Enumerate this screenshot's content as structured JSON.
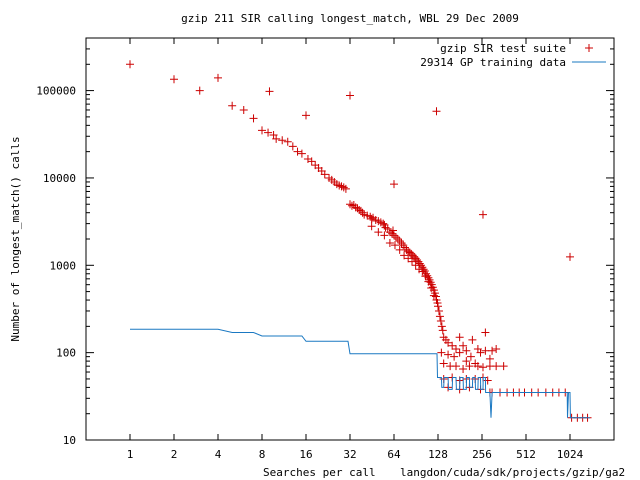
{
  "chart_data": {
    "type": "scatter",
    "title": "gzip 211 SIR calling longest_match, WBL 29 Dec 2009",
    "xlabel": "Searches per call",
    "x_path_label": "langdon/cuda/sdk/projects/gzip/ga2",
    "ylabel": "Number of longest_match() calls",
    "xscale": "log2",
    "yscale": "log10",
    "xlim": [
      0.5,
      2048
    ],
    "ylim": [
      10,
      400000
    ],
    "xticks": [
      1,
      2,
      4,
      8,
      16,
      32,
      64,
      128,
      256,
      512,
      1024
    ],
    "yticks": [
      10,
      100,
      1000,
      10000,
      100000
    ],
    "grid": false,
    "legend_position": "top-right",
    "series": [
      {
        "name": "gzip SIR test suite",
        "kind": "points",
        "marker": "+",
        "color": "#cc0000",
        "points": [
          [
            1,
            200000
          ],
          [
            2,
            135000
          ],
          [
            3,
            100000
          ],
          [
            4,
            140000
          ],
          [
            5,
            67000
          ],
          [
            6,
            60000
          ],
          [
            7,
            48000
          ],
          [
            9,
            98000
          ],
          [
            16,
            52000
          ],
          [
            32,
            88000
          ],
          [
            125,
            58000
          ],
          [
            1024,
            1250
          ],
          [
            260,
            3800
          ],
          [
            64,
            8500
          ],
          [
            8,
            35000
          ],
          [
            8.8,
            33000
          ],
          [
            9.6,
            31000
          ],
          [
            10,
            28000
          ],
          [
            11,
            27000
          ],
          [
            12,
            26000
          ],
          [
            13,
            23000
          ],
          [
            14,
            20000
          ],
          [
            15,
            19000
          ],
          [
            16.5,
            16500
          ],
          [
            17.5,
            15500
          ],
          [
            18.5,
            14000
          ],
          [
            19.5,
            13000
          ],
          [
            20.5,
            12000
          ],
          [
            21.5,
            11000
          ],
          [
            23,
            10000
          ],
          [
            24,
            9500
          ],
          [
            25,
            9000
          ],
          [
            26,
            8500
          ],
          [
            27,
            8200
          ],
          [
            28,
            8000
          ],
          [
            29,
            7800
          ],
          [
            30,
            7500
          ],
          [
            32,
            5000
          ],
          [
            33,
            4800
          ],
          [
            34,
            4900
          ],
          [
            35,
            4600
          ],
          [
            36,
            4500
          ],
          [
            37,
            4300
          ],
          [
            38,
            4200
          ],
          [
            39,
            4000
          ],
          [
            40,
            3800
          ],
          [
            42,
            3700
          ],
          [
            44,
            3600
          ],
          [
            45,
            3400
          ],
          [
            46,
            3500
          ],
          [
            48,
            3300
          ],
          [
            50,
            3200
          ],
          [
            52,
            3100
          ],
          [
            54,
            3000
          ],
          [
            55,
            2900
          ],
          [
            56,
            2700
          ],
          [
            58,
            2600
          ],
          [
            60,
            2400
          ],
          [
            62,
            2300
          ],
          [
            63,
            2500
          ],
          [
            64,
            2200
          ],
          [
            66,
            2100
          ],
          [
            68,
            2000
          ],
          [
            70,
            1900
          ],
          [
            72,
            1800
          ],
          [
            74,
            1700
          ],
          [
            76,
            1600
          ],
          [
            78,
            1500
          ],
          [
            80,
            1450
          ],
          [
            82,
            1400
          ],
          [
            84,
            1350
          ],
          [
            86,
            1300
          ],
          [
            88,
            1250
          ],
          [
            90,
            1200
          ],
          [
            92,
            1150
          ],
          [
            94,
            1100
          ],
          [
            96,
            1050
          ],
          [
            98,
            1000
          ],
          [
            100,
            950
          ],
          [
            102,
            900
          ],
          [
            104,
            860
          ],
          [
            106,
            800
          ],
          [
            108,
            760
          ],
          [
            110,
            720
          ],
          [
            112,
            680
          ],
          [
            114,
            640
          ],
          [
            116,
            600
          ],
          [
            118,
            560
          ],
          [
            120,
            520
          ],
          [
            122,
            480
          ],
          [
            124,
            440
          ],
          [
            125,
            400
          ],
          [
            127,
            370
          ],
          [
            128,
            340
          ],
          [
            130,
            300
          ],
          [
            132,
            260
          ],
          [
            134,
            230
          ],
          [
            136,
            200
          ],
          [
            138,
            180
          ],
          [
            45,
            2800
          ],
          [
            50,
            2400
          ],
          [
            55,
            2200
          ],
          [
            60,
            1800
          ],
          [
            65,
            1700
          ],
          [
            70,
            1500
          ],
          [
            75,
            1300
          ],
          [
            80,
            1200
          ],
          [
            85,
            1100
          ],
          [
            90,
            1000
          ],
          [
            95,
            900
          ],
          [
            100,
            850
          ],
          [
            105,
            750
          ],
          [
            110,
            650
          ],
          [
            115,
            550
          ],
          [
            120,
            450
          ],
          [
            140,
            150
          ],
          [
            145,
            140
          ],
          [
            150,
            130
          ],
          [
            160,
            120
          ],
          [
            170,
            110
          ],
          [
            180,
            150
          ],
          [
            190,
            120
          ],
          [
            200,
            105
          ],
          [
            220,
            140
          ],
          [
            240,
            110
          ],
          [
            270,
            170
          ],
          [
            135,
            100
          ],
          [
            150,
            95
          ],
          [
            165,
            90
          ],
          [
            180,
            100
          ],
          [
            200,
            80
          ],
          [
            215,
            90
          ],
          [
            230,
            75
          ],
          [
            250,
            100
          ],
          [
            270,
            105
          ],
          [
            290,
            85
          ],
          [
            300,
            105
          ],
          [
            320,
            110
          ],
          [
            140,
            75
          ],
          [
            155,
            70
          ],
          [
            170,
            70
          ],
          [
            190,
            65
          ],
          [
            210,
            70
          ],
          [
            240,
            70
          ],
          [
            260,
            68
          ],
          [
            290,
            70
          ],
          [
            320,
            70
          ],
          [
            360,
            70
          ],
          [
            140,
            50
          ],
          [
            160,
            52
          ],
          [
            180,
            48
          ],
          [
            200,
            50
          ],
          [
            230,
            50
          ],
          [
            260,
            52
          ],
          [
            280,
            48
          ],
          [
            150,
            40
          ],
          [
            180,
            38
          ],
          [
            210,
            40
          ],
          [
            250,
            38
          ],
          [
            290,
            35
          ],
          [
            300,
            35
          ],
          [
            340,
            35
          ],
          [
            380,
            35
          ],
          [
            420,
            35
          ],
          [
            460,
            35
          ],
          [
            500,
            35
          ],
          [
            560,
            35
          ],
          [
            620,
            35
          ],
          [
            700,
            35
          ],
          [
            780,
            35
          ],
          [
            860,
            35
          ],
          [
            950,
            35
          ],
          [
            1050,
            18
          ],
          [
            1150,
            18
          ],
          [
            1250,
            18
          ],
          [
            1350,
            18
          ]
        ]
      },
      {
        "name": "29314 GP training data",
        "kind": "line",
        "color": "#1a78c2",
        "points": [
          [
            1,
            185
          ],
          [
            4,
            185
          ],
          [
            5,
            170
          ],
          [
            7,
            170
          ],
          [
            8,
            155
          ],
          [
            15,
            155
          ],
          [
            16,
            135
          ],
          [
            31,
            135
          ],
          [
            32,
            97
          ],
          [
            126,
            97
          ],
          [
            127,
            52
          ],
          [
            135,
            52
          ],
          [
            136,
            40
          ],
          [
            140,
            40
          ],
          [
            141,
            52
          ],
          [
            150,
            52
          ],
          [
            151,
            38
          ],
          [
            160,
            38
          ],
          [
            161,
            52
          ],
          [
            170,
            52
          ],
          [
            171,
            38
          ],
          [
            180,
            38
          ],
          [
            181,
            52
          ],
          [
            190,
            52
          ],
          [
            191,
            38
          ],
          [
            200,
            38
          ],
          [
            201,
            52
          ],
          [
            210,
            52
          ],
          [
            211,
            40
          ],
          [
            220,
            40
          ],
          [
            221,
            52
          ],
          [
            230,
            52
          ],
          [
            231,
            38
          ],
          [
            240,
            38
          ],
          [
            241,
            52
          ],
          [
            250,
            52
          ],
          [
            251,
            38
          ],
          [
            260,
            38
          ],
          [
            261,
            52
          ],
          [
            270,
            52
          ],
          [
            271,
            35
          ],
          [
            290,
            35
          ],
          [
            295,
            18
          ],
          [
            300,
            35
          ],
          [
            980,
            35
          ],
          [
            985,
            18
          ],
          [
            1000,
            35
          ],
          [
            1024,
            35
          ],
          [
            1030,
            18
          ],
          [
            1400,
            18
          ]
        ]
      }
    ]
  }
}
